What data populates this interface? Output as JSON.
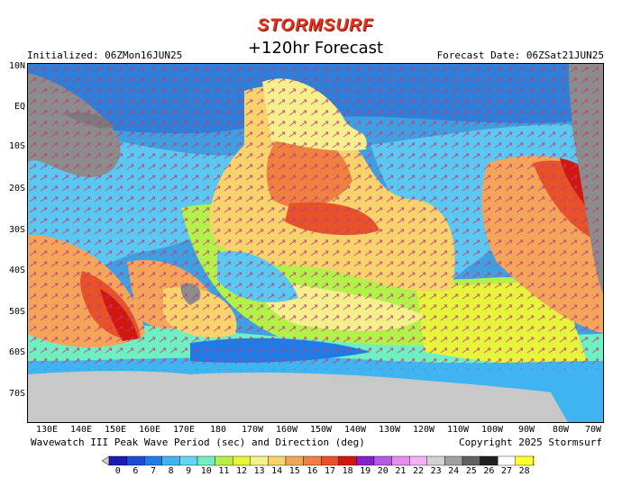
{
  "header": {
    "brand": "STORMSURF",
    "subtitle": "+120hr Forecast",
    "initialized": "Initialized: 06ZMon16JUN25",
    "forecast_date": "Forecast Date: 06ZSat21JUN25"
  },
  "axes": {
    "lat_labels": [
      "10N",
      "EQ",
      "10S",
      "20S",
      "30S",
      "40S",
      "50S",
      "60S",
      "70S"
    ],
    "lon_labels": [
      "130E",
      "140E",
      "150E",
      "160E",
      "170E",
      "180",
      "170W",
      "160W",
      "150W",
      "140W",
      "130W",
      "120W",
      "110W",
      "100W",
      "90W",
      "80W",
      "70W"
    ]
  },
  "footer": {
    "product": "Wavewatch III Peak Wave Period (sec) and Direction (deg)",
    "copyright": "Copyright 2025 Stormsurf"
  },
  "legend": {
    "values": [
      "0",
      "6",
      "7",
      "8",
      "9",
      "10",
      "11",
      "12",
      "13",
      "14",
      "15",
      "16",
      "17",
      "18",
      "19",
      "20",
      "21",
      "22",
      "23",
      "24",
      "25",
      "26",
      "27",
      "28"
    ],
    "colors": [
      "#1a1ab4",
      "#1c4bd6",
      "#1f7be6",
      "#3fb4f0",
      "#5fd8f5",
      "#6ff0c0",
      "#b4f04a",
      "#e6f53c",
      "#f5f08c",
      "#f8d26a",
      "#f5a55a",
      "#ee8040",
      "#e85228",
      "#d01810",
      "#8a1ec8",
      "#b45ae6",
      "#e68cf0",
      "#f0b4f5",
      "#d2d2d2",
      "#a0a0a0",
      "#606060",
      "#202020",
      "#ffffff",
      "#ffff32"
    ]
  },
  "colors": {
    "ocean_blue": "#4aa6e4",
    "land": "#8c8c8c",
    "ice": "#c8c8c8",
    "arrow": "#c03a80"
  }
}
